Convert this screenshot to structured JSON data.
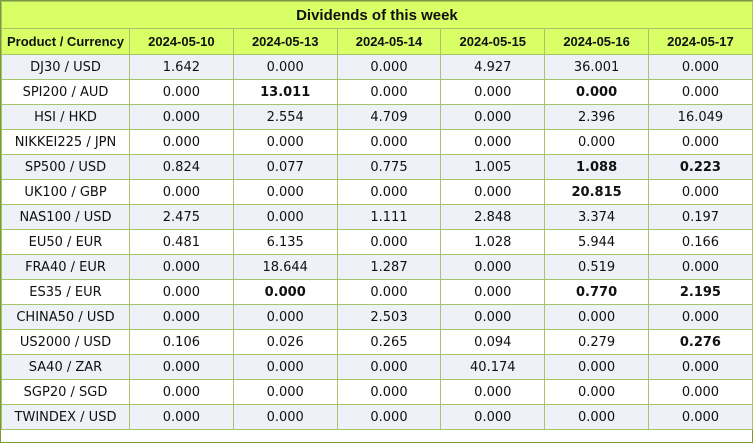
{
  "title": "Dividends of this week",
  "columns": [
    "Product / Currency",
    "2024-05-10",
    "2024-05-13",
    "2024-05-14",
    "2024-05-15",
    "2024-05-16",
    "2024-05-17"
  ],
  "rows": [
    {
      "product": "DJ30 / USD",
      "values": [
        "1.642",
        "0.000",
        "0.000",
        "4.927",
        "36.001",
        "0.000"
      ],
      "bold": []
    },
    {
      "product": "SPI200 / AUD",
      "values": [
        "0.000",
        "13.011",
        "0.000",
        "0.000",
        "0.000",
        "0.000"
      ],
      "bold": [
        1,
        4
      ]
    },
    {
      "product": "HSI / HKD",
      "values": [
        "0.000",
        "2.554",
        "4.709",
        "0.000",
        "2.396",
        "16.049"
      ],
      "bold": []
    },
    {
      "product": "NIKKEI225 / JPN",
      "values": [
        "0.000",
        "0.000",
        "0.000",
        "0.000",
        "0.000",
        "0.000"
      ],
      "bold": []
    },
    {
      "product": "SP500 / USD",
      "values": [
        "0.824",
        "0.077",
        "0.775",
        "1.005",
        "1.088",
        "0.223"
      ],
      "bold": [
        4,
        5
      ]
    },
    {
      "product": "UK100 / GBP",
      "values": [
        "0.000",
        "0.000",
        "0.000",
        "0.000",
        "20.815",
        "0.000"
      ],
      "bold": [
        4
      ]
    },
    {
      "product": "NAS100 / USD",
      "values": [
        "2.475",
        "0.000",
        "1.111",
        "2.848",
        "3.374",
        "0.197"
      ],
      "bold": []
    },
    {
      "product": "EU50 / EUR",
      "values": [
        "0.481",
        "6.135",
        "0.000",
        "1.028",
        "5.944",
        "0.166"
      ],
      "bold": []
    },
    {
      "product": "FRA40 / EUR",
      "values": [
        "0.000",
        "18.644",
        "1.287",
        "0.000",
        "0.519",
        "0.000"
      ],
      "bold": []
    },
    {
      "product": "ES35 / EUR",
      "values": [
        "0.000",
        "0.000",
        "0.000",
        "0.000",
        "0.770",
        "2.195"
      ],
      "bold": [
        1,
        4,
        5
      ]
    },
    {
      "product": "CHINA50 / USD",
      "values": [
        "0.000",
        "0.000",
        "2.503",
        "0.000",
        "0.000",
        "0.000"
      ],
      "bold": []
    },
    {
      "product": "US2000 / USD",
      "values": [
        "0.106",
        "0.026",
        "0.265",
        "0.094",
        "0.279",
        "0.276"
      ],
      "bold": [
        5
      ]
    },
    {
      "product": "SA40 / ZAR",
      "values": [
        "0.000",
        "0.000",
        "0.000",
        "40.174",
        "0.000",
        "0.000"
      ],
      "bold": []
    },
    {
      "product": "SGP20 / SGD",
      "values": [
        "0.000",
        "0.000",
        "0.000",
        "0.000",
        "0.000",
        "0.000"
      ],
      "bold": []
    },
    {
      "product": "TWINDEX / USD",
      "values": [
        "0.000",
        "0.000",
        "0.000",
        "0.000",
        "0.000",
        "0.000"
      ],
      "bold": []
    }
  ],
  "colors": {
    "header_bg": "#d8ff66",
    "alt_row_bg": "#eff1f8",
    "border": "#a6c46a"
  }
}
